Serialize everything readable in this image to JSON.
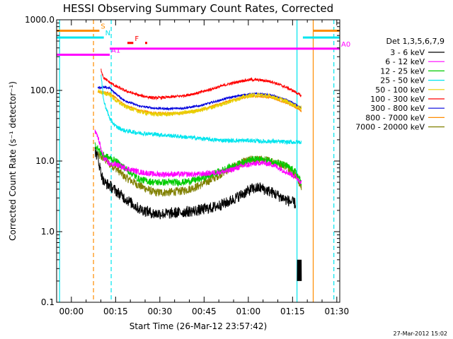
{
  "chart_data": {
    "type": "line",
    "title": "HESSI Observing Summary Count Rates, Corrected",
    "xlabel": "Start Time (26-Mar-12 23:57:42)",
    "ylabel": "Corrected Count Rate (s⁻¹ detector⁻¹)",
    "yscale": "log",
    "ylim": [
      0.1,
      1000
    ],
    "xlim": [
      -3,
      93
    ],
    "x_unit": "minutes after start",
    "x_ticks": [
      {
        "v": 2,
        "label": "00:00"
      },
      {
        "v": 17,
        "label": "00:15"
      },
      {
        "v": 32,
        "label": "00:30"
      },
      {
        "v": 47,
        "label": "00:45"
      },
      {
        "v": 62,
        "label": "01:00"
      },
      {
        "v": 77,
        "label": "01:15"
      },
      {
        "v": 92,
        "label": "01:30"
      }
    ],
    "y_ticks": [
      {
        "v": 0.1,
        "label": "0.1"
      },
      {
        "v": 1,
        "label": "1.0"
      },
      {
        "v": 10,
        "label": "10.0"
      },
      {
        "v": 100,
        "label": "100.0"
      },
      {
        "v": 1000,
        "label": "1000.0"
      }
    ],
    "legend_title": "Det 1,3,5,6,7,9",
    "legend_position": "right",
    "series": [
      {
        "name": "3 - 6 keV",
        "color": "#000000",
        "noise": 0.08,
        "x": [
          10,
          11,
          12,
          13,
          15,
          17,
          20,
          25,
          30,
          35,
          40,
          45,
          50,
          55,
          60,
          63,
          66,
          70,
          75,
          78
        ],
        "y": [
          14,
          11,
          7,
          5,
          4.5,
          3.8,
          3.0,
          2.1,
          1.8,
          1.8,
          1.9,
          2.0,
          2.2,
          2.6,
          3.4,
          4.0,
          4.2,
          3.6,
          2.8,
          2.5
        ]
      },
      {
        "name": "6 - 12 keV",
        "color": "#ff00ff",
        "noise": 0.04,
        "x": [
          10,
          11,
          12,
          13,
          15,
          17,
          20,
          25,
          30,
          35,
          40,
          45,
          50,
          55,
          60,
          63,
          66,
          70,
          75,
          78,
          80
        ],
        "y": [
          26,
          22,
          15,
          11,
          9,
          9,
          8,
          7,
          6.5,
          6.5,
          6.5,
          6.5,
          6.8,
          7.2,
          8.5,
          9.0,
          9.5,
          9.0,
          7.0,
          6.0,
          5.0
        ]
      },
      {
        "name": "12 - 25 keV",
        "color": "#00cc00",
        "noise": 0.05,
        "x": [
          10,
          11,
          12,
          13,
          15,
          17,
          20,
          25,
          30,
          35,
          40,
          45,
          50,
          55,
          60,
          63,
          66,
          70,
          75,
          78,
          80
        ],
        "y": [
          17,
          15,
          13,
          12,
          11,
          10,
          8,
          5.5,
          5.0,
          5.0,
          5.0,
          5.5,
          6.5,
          8.0,
          9.5,
          10.5,
          10.5,
          10.0,
          8.5,
          7.0,
          5.0
        ]
      },
      {
        "name": "25 - 50 keV",
        "color": "#00e5ee",
        "noise": 0.03,
        "x": [
          12,
          13,
          15,
          17,
          20,
          25,
          30,
          35,
          40,
          45,
          50,
          55,
          60,
          63,
          66,
          70,
          75,
          78,
          80
        ],
        "y": [
          170,
          70,
          40,
          31,
          27,
          25,
          24,
          23,
          22,
          21,
          20,
          19.5,
          19.5,
          19.5,
          19,
          19,
          18.5,
          18.5,
          18.5
        ]
      },
      {
        "name": "50 - 100 keV",
        "color": "#e8d000",
        "noise": 0.03,
        "x": [
          11,
          13,
          15,
          17,
          20,
          25,
          30,
          35,
          40,
          45,
          50,
          55,
          60,
          63,
          66,
          70,
          75,
          78,
          80
        ],
        "y": [
          100,
          90,
          88,
          72,
          60,
          50,
          46,
          46,
          48,
          52,
          58,
          68,
          80,
          85,
          86,
          82,
          70,
          60,
          57
        ]
      },
      {
        "name": "100 - 300 keV",
        "color": "#ff0000",
        "noise": 0.02,
        "x": [
          12,
          13,
          15,
          17,
          20,
          25,
          30,
          35,
          40,
          45,
          50,
          55,
          60,
          63,
          66,
          70,
          75,
          78,
          80
        ],
        "y": [
          200,
          150,
          130,
          115,
          100,
          85,
          78,
          80,
          84,
          92,
          106,
          122,
          137,
          142,
          140,
          133,
          110,
          95,
          83
        ]
      },
      {
        "name": "300 - 800 keV",
        "color": "#0000dd",
        "noise": 0.015,
        "x": [
          11,
          13,
          15,
          17,
          20,
          25,
          30,
          35,
          40,
          45,
          50,
          55,
          60,
          63,
          66,
          70,
          75,
          78,
          80
        ],
        "y": [
          110,
          110,
          108,
          90,
          72,
          60,
          56,
          55,
          56,
          60,
          68,
          78,
          86,
          89,
          89,
          85,
          73,
          63,
          56
        ]
      },
      {
        "name": "800 - 7000 keV",
        "color": "#ff8c00",
        "noise": 0.015,
        "x": [
          11,
          13,
          15,
          17,
          20,
          25,
          30,
          35,
          40,
          45,
          50,
          55,
          60,
          63,
          66,
          70,
          75,
          78,
          80
        ],
        "y": [
          95,
          94,
          92,
          78,
          62,
          52,
          48,
          47,
          48,
          52,
          60,
          70,
          79,
          82,
          82,
          79,
          66,
          58,
          51
        ]
      },
      {
        "name": "7000 - 20000 keV",
        "color": "#808000",
        "noise": 0.06,
        "x": [
          11,
          13,
          15,
          17,
          20,
          25,
          30,
          35,
          40,
          45,
          50,
          55,
          60,
          63,
          66,
          70,
          75,
          78,
          80
        ],
        "y": [
          12,
          11,
          9,
          8,
          6,
          4.5,
          3.6,
          3.6,
          3.8,
          4.4,
          5.6,
          7.5,
          9.5,
          10.5,
          10.5,
          10.0,
          8.5,
          6.5,
          4.2
        ]
      }
    ],
    "flag_bars": [
      {
        "label": "S",
        "color": "#ff8c00",
        "x_start": -3,
        "x_end": 11.5,
        "y": 700
      },
      {
        "label": "N",
        "color": "#00e5ee",
        "x_start": -3,
        "x_end": 13,
        "y": 560
      },
      {
        "label": "",
        "color": "#00e5ee",
        "x_start": 80.5,
        "x_end": 93,
        "y": 560
      },
      {
        "label": "",
        "color": "#ff8c00",
        "x_start": 84,
        "x_end": 93,
        "y": 700
      },
      {
        "label": "F",
        "color": "#ff0000",
        "x_start": 21,
        "x_end": 23,
        "y": 470
      },
      {
        "label": "A0",
        "color": "#ff00ff",
        "x_start": 15,
        "x_end": 93,
        "y": 390
      },
      {
        "label": "A1",
        "color": "#ff00ff",
        "x_start": -3,
        "x_end": 15,
        "y": 320
      }
    ],
    "vertical_markers": [
      {
        "x": -2,
        "color": "#00e5ee",
        "style": "solid"
      },
      {
        "x": 9.5,
        "color": "#ff8c00",
        "style": "dashed"
      },
      {
        "x": 15.5,
        "color": "#00e5ee",
        "style": "dashed"
      },
      {
        "x": 78.5,
        "color": "#00e5ee",
        "style": "solid"
      },
      {
        "x": 84,
        "color": "#ff8c00",
        "style": "solid"
      },
      {
        "x": 91,
        "color": "#00e5ee",
        "style": "dashed"
      }
    ],
    "grid": false
  },
  "footer": {
    "timestamp": "27-Mar-2012 15:02"
  }
}
